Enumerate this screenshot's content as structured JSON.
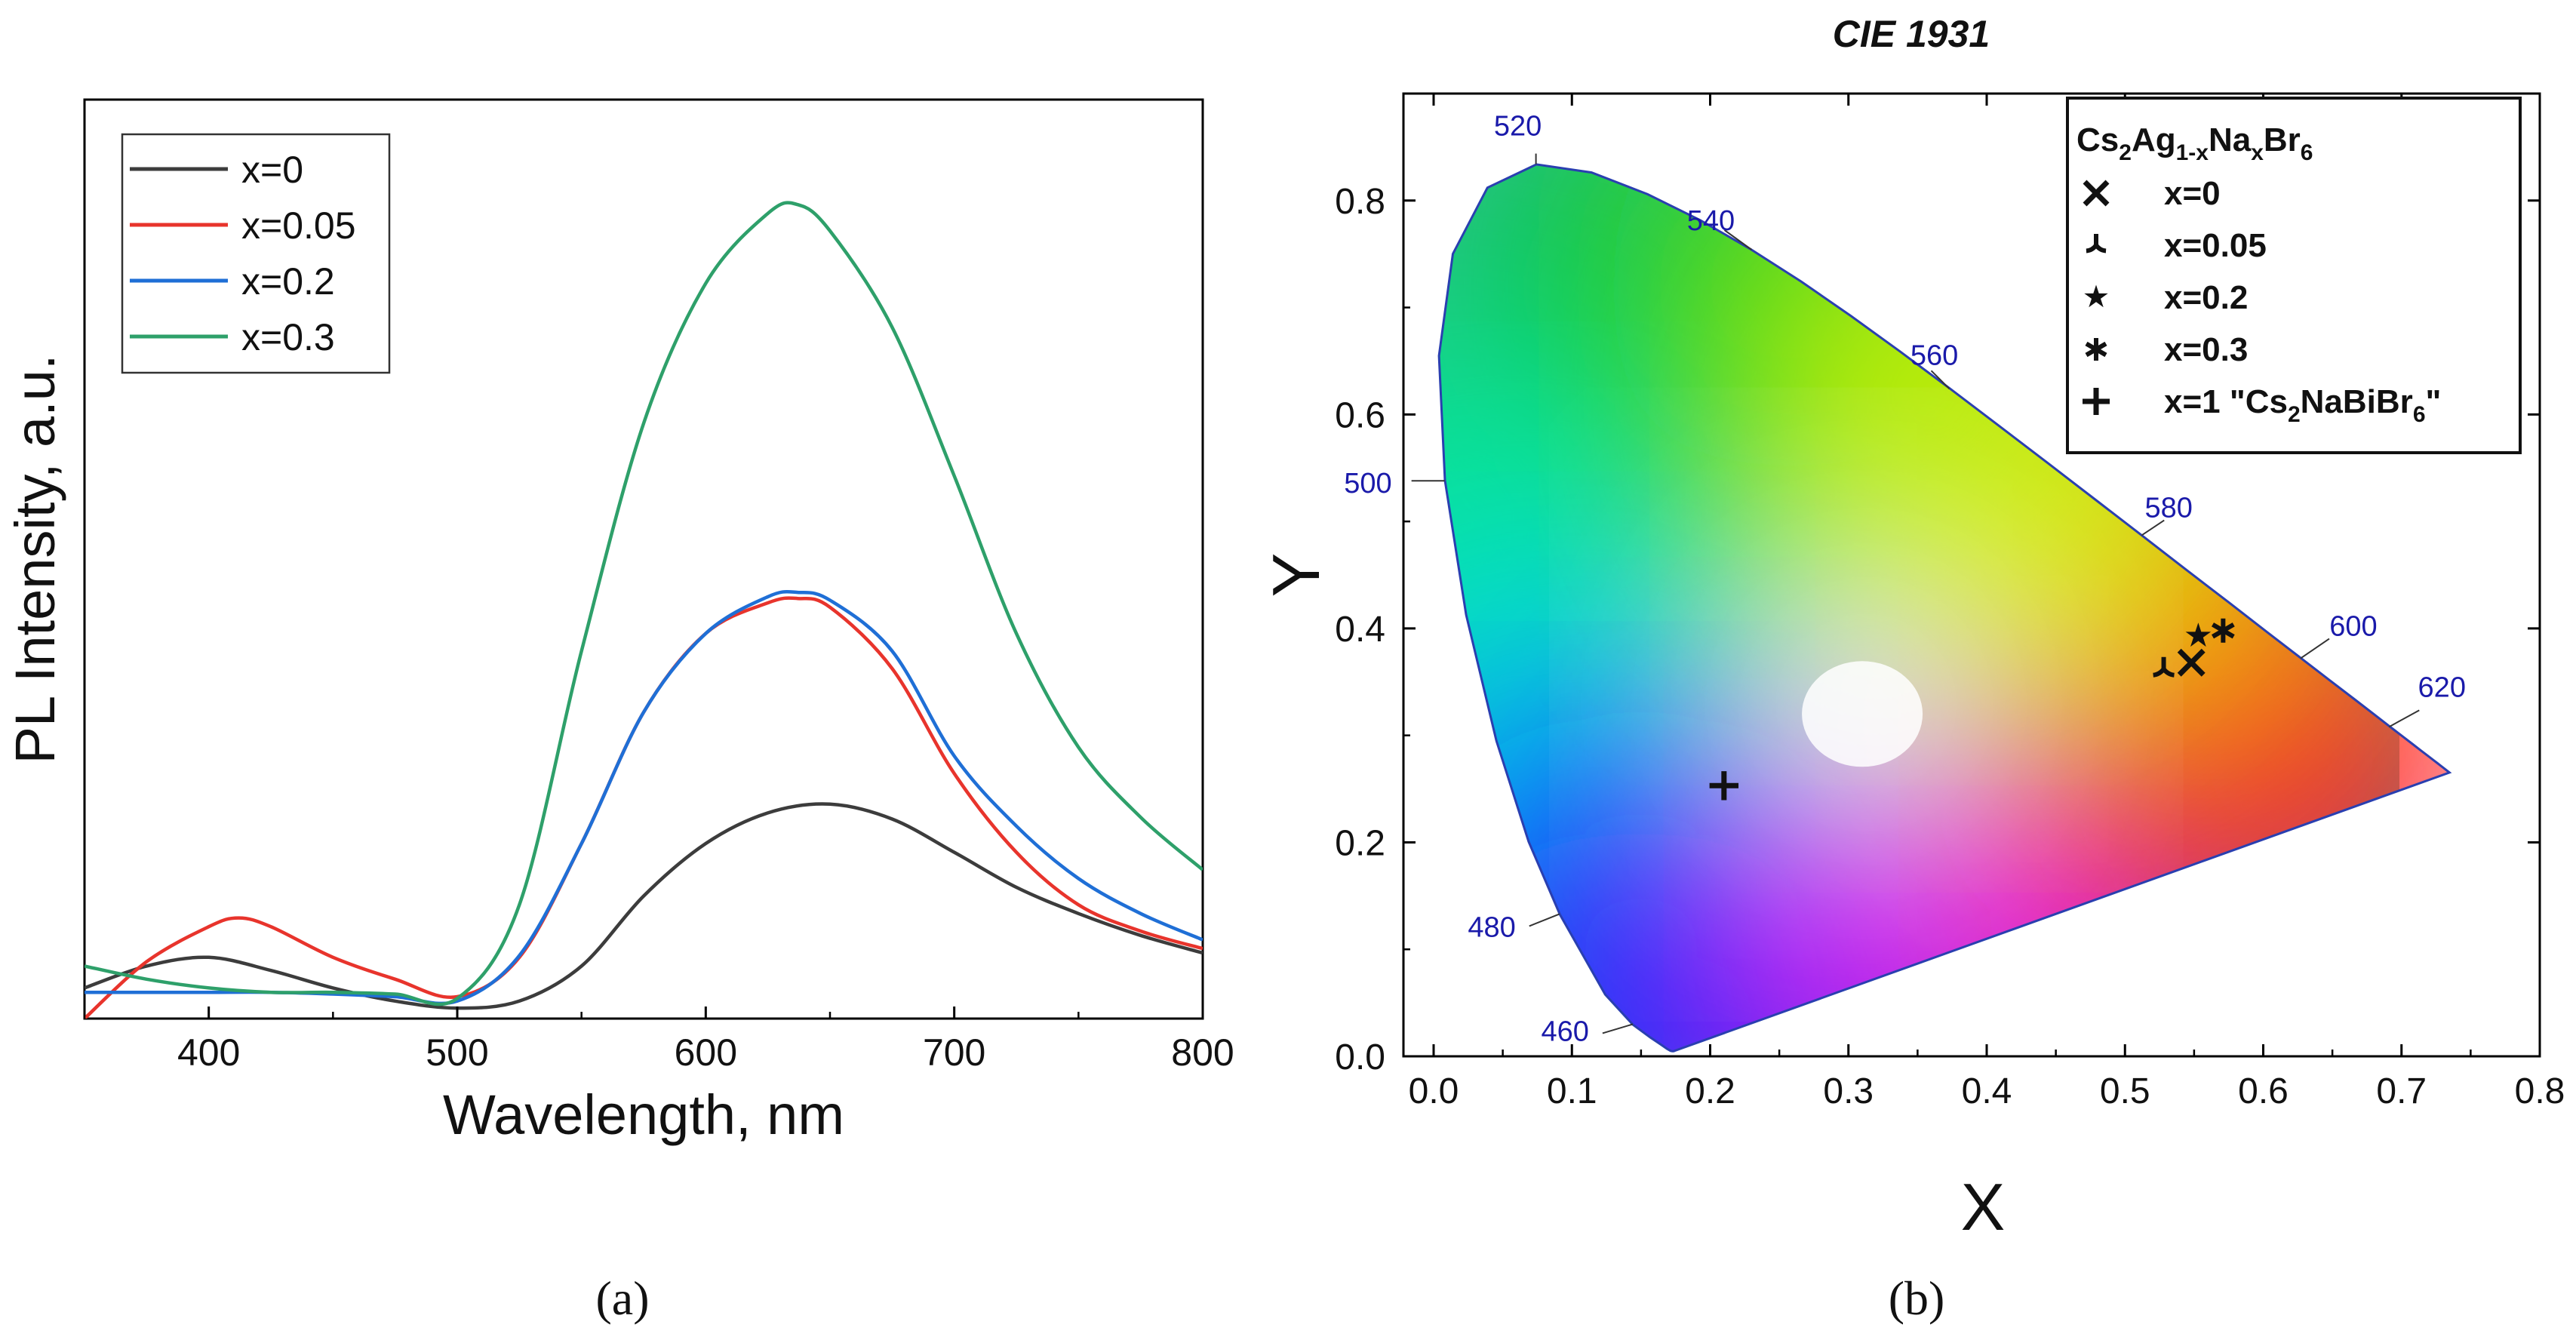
{
  "chart_data": [
    {
      "panel_label": "(a)",
      "type": "line",
      "xlabel": "Wavelength, nm",
      "ylabel": "PL Intensity, a.u.",
      "xlim": [
        350,
        800
      ],
      "ylim": [
        0,
        1.05
      ],
      "xticks": [
        400,
        500,
        600,
        700,
        800
      ],
      "yticks_shown": false,
      "grid": false,
      "legend_position": "top-left",
      "series": [
        {
          "name": "x=0",
          "color": "#3c3c3c",
          "x": [
            350,
            375,
            400,
            425,
            450,
            475,
            500,
            525,
            550,
            575,
            600,
            625,
            650,
            675,
            700,
            725,
            750,
            775,
            800
          ],
          "y": [
            0.035,
            0.06,
            0.07,
            0.055,
            0.035,
            0.02,
            0.012,
            0.02,
            0.06,
            0.14,
            0.2,
            0.235,
            0.245,
            0.228,
            0.19,
            0.15,
            0.12,
            0.095,
            0.075
          ]
        },
        {
          "name": "x=0.05",
          "color": "#e8342c",
          "x": [
            350,
            375,
            400,
            412,
            425,
            450,
            475,
            500,
            525,
            550,
            575,
            600,
            625,
            637,
            650,
            675,
            700,
            725,
            750,
            775,
            800
          ],
          "y": [
            0.0,
            0.065,
            0.105,
            0.115,
            0.105,
            0.07,
            0.045,
            0.025,
            0.07,
            0.2,
            0.35,
            0.44,
            0.475,
            0.48,
            0.47,
            0.4,
            0.28,
            0.19,
            0.13,
            0.1,
            0.08
          ]
        },
        {
          "name": "x=0.2",
          "color": "#1f6fd6",
          "x": [
            350,
            375,
            400,
            425,
            450,
            475,
            500,
            525,
            550,
            575,
            600,
            625,
            637,
            650,
            675,
            700,
            725,
            750,
            775,
            800
          ],
          "y": [
            0.03,
            0.03,
            0.03,
            0.03,
            0.028,
            0.025,
            0.02,
            0.072,
            0.2,
            0.35,
            0.44,
            0.482,
            0.487,
            0.478,
            0.42,
            0.3,
            0.22,
            0.16,
            0.12,
            0.09
          ]
        },
        {
          "name": "x=0.3",
          "color": "#2ea06a",
          "x": [
            350,
            375,
            400,
            425,
            450,
            475,
            500,
            525,
            550,
            575,
            600,
            625,
            637,
            650,
            675,
            700,
            725,
            750,
            775,
            800
          ],
          "y": [
            0.06,
            0.045,
            0.035,
            0.03,
            0.03,
            0.028,
            0.023,
            0.13,
            0.42,
            0.68,
            0.84,
            0.92,
            0.93,
            0.9,
            0.79,
            0.62,
            0.44,
            0.31,
            0.23,
            0.17
          ]
        }
      ]
    },
    {
      "panel_label": "(b)",
      "type": "scatter",
      "title": "CIE 1931",
      "xlabel": "X",
      "ylabel": "Y",
      "xlim": [
        0,
        0.8
      ],
      "ylim": [
        0,
        0.9
      ],
      "xticks": [
        "0.0",
        "0.1",
        "0.2",
        "0.3",
        "0.4",
        "0.5",
        "0.6",
        "0.7",
        "0.8"
      ],
      "yticks": [
        "0.0",
        "0.2",
        "0.4",
        "0.6",
        "0.8"
      ],
      "grid": false,
      "legend_position": "top-right",
      "legend_title": {
        "base": "Cs",
        "sub1": "2",
        "mid1": "Ag",
        "sub2": "1-x",
        "mid2": "Na",
        "sub3": "x",
        "mid3": "Br",
        "sub4": "6"
      },
      "wavelength_labels": [
        {
          "nm": "460",
          "x": 0.144,
          "y": 0.03
        },
        {
          "nm": "480",
          "x": 0.091,
          "y": 0.133
        },
        {
          "nm": "500",
          "x": 0.008,
          "y": 0.538
        },
        {
          "nm": "520",
          "x": 0.074,
          "y": 0.834
        },
        {
          "nm": "540",
          "x": 0.23,
          "y": 0.754
        },
        {
          "nm": "560",
          "x": 0.373,
          "y": 0.624
        },
        {
          "nm": "580",
          "x": 0.512,
          "y": 0.487
        },
        {
          "nm": "600",
          "x": 0.627,
          "y": 0.372
        },
        {
          "nm": "620",
          "x": 0.691,
          "y": 0.308
        }
      ],
      "points": [
        {
          "label": "x=0",
          "marker": "x",
          "x": 0.548,
          "y": 0.368
        },
        {
          "label": "x=0.05",
          "marker": "tri",
          "x": 0.528,
          "y": 0.362
        },
        {
          "label": "x=0.2",
          "marker": "star5",
          "x": 0.553,
          "y": 0.393
        },
        {
          "label": "x=0.3",
          "marker": "star6",
          "x": 0.571,
          "y": 0.398
        },
        {
          "label": "x=1 \"Cs2NaBiBr6\"",
          "marker": "plus",
          "x": 0.21,
          "y": 0.253
        }
      ],
      "legend_items": [
        {
          "marker": "x",
          "text": "x=0"
        },
        {
          "marker": "tri",
          "text": "x=0.05"
        },
        {
          "marker": "star5",
          "text": "x=0.2"
        },
        {
          "marker": "star6",
          "text": "x=0.3"
        },
        {
          "marker": "plus",
          "text": "x=1 \"Cs",
          "sub": "2",
          "text2": "NaBiBr",
          "sub2": "6",
          "text3": "\""
        }
      ]
    }
  ]
}
